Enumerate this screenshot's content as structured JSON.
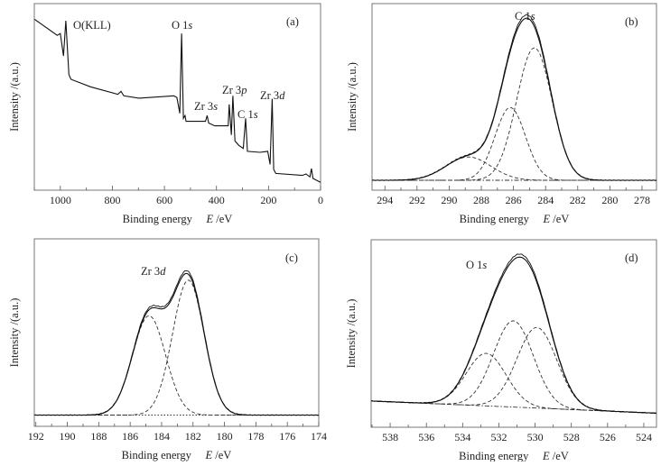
{
  "chart_data": [
    {
      "panel_label": "(a)",
      "type": "line",
      "xlabel": {
        "text": "Binding energy",
        "var": "E",
        "unit": " /eV"
      },
      "ylabel": "Intensity /(a.u.)",
      "xlim": [
        1100,
        0
      ],
      "ylim": [
        0,
        1
      ],
      "x_ticks": [
        "1000",
        "800",
        "600",
        "400",
        "200",
        "0"
      ],
      "x_tick_values": [
        1000,
        800,
        600,
        400,
        200,
        0
      ],
      "annotations": [
        {
          "main": "O(KLL)",
          "ital": ""
        },
        {
          "main": "O 1",
          "ital": "s"
        },
        {
          "main": "Zr 3",
          "ital": "s"
        },
        {
          "main": "Zr 3",
          "ital": "p"
        },
        {
          "main": "C 1",
          "ital": "s"
        },
        {
          "main": "Zr 3",
          "ital": "d"
        }
      ],
      "series": [
        {
          "style": "solid",
          "x": [
            1099,
            1012,
            1000,
            988,
            979,
            967,
            959,
            884,
            779,
            767,
            756,
            698,
            564,
            552,
            541,
            534,
            527,
            521,
            517,
            442,
            436,
            430,
            407,
            355,
            351,
            343,
            337,
            329,
            314,
            297,
            288,
            281,
            233,
            203,
            194,
            186,
            180,
            172,
            70,
            56,
            41,
            35,
            29,
            0
          ],
          "y": [
            0.916,
            0.83,
            0.84,
            0.72,
            0.908,
            0.62,
            0.594,
            0.554,
            0.514,
            0.53,
            0.506,
            0.493,
            0.506,
            0.497,
            0.412,
            0.84,
            0.385,
            0.4,
            0.369,
            0.369,
            0.4,
            0.36,
            0.345,
            0.345,
            0.46,
            0.296,
            0.506,
            0.264,
            0.24,
            0.224,
            0.385,
            0.208,
            0.203,
            0.208,
            0.138,
            0.49,
            0.111,
            0.09,
            0.079,
            0.087,
            0.071,
            0.116,
            0.063,
            0.042
          ]
        }
      ]
    },
    {
      "panel_label": "(b)",
      "type": "line",
      "xlabel": {
        "text": "Binding energy",
        "var": "E",
        "unit": " /eV"
      },
      "ylabel": "Intensity /(a.u.)",
      "xlim": [
        294.8,
        277.1
      ],
      "ylim": [
        0,
        1
      ],
      "x_ticks": [
        "294",
        "292",
        "290",
        "288",
        "286",
        "284",
        "282",
        "280",
        "278"
      ],
      "x_tick_values": [
        294,
        292,
        290,
        288,
        286,
        284,
        282,
        280,
        278
      ],
      "annotations": [
        {
          "main": "C 1",
          "ital": "s"
        }
      ],
      "baseline": {
        "x": [
          294.8,
          277.1
        ],
        "y": [
          0.053,
          0.053
        ]
      },
      "fit_components": [
        {
          "center": 284.7,
          "height": 0.71,
          "sigma": 1.1
        },
        {
          "center": 286.2,
          "height": 0.39,
          "sigma": 0.95
        },
        {
          "center": 288.8,
          "height": 0.125,
          "sigma": 1.4
        }
      ]
    },
    {
      "panel_label": "(c)",
      "type": "line",
      "xlabel": {
        "text": "Binding energy",
        "var": "E",
        "unit": " /eV"
      },
      "ylabel": "Intensity /(a.u.)",
      "xlim": [
        192.1,
        174
      ],
      "ylim": [
        0,
        1
      ],
      "x_ticks": [
        "192",
        "190",
        "188",
        "186",
        "184",
        "182",
        "180",
        "178",
        "176",
        "174"
      ],
      "x_tick_values": [
        192,
        190,
        188,
        186,
        184,
        182,
        180,
        178,
        176,
        174
      ],
      "annotations": [
        {
          "main": "Zr 3",
          "ital": "d"
        }
      ],
      "baseline": {
        "x": [
          192.1,
          174
        ],
        "y": [
          0.06,
          0.06
        ]
      },
      "fit_components": [
        {
          "center": 184.8,
          "height": 0.53,
          "sigma": 1.05
        },
        {
          "center": 182.3,
          "height": 0.72,
          "sigma": 1.0
        }
      ]
    },
    {
      "panel_label": "(d)",
      "type": "line",
      "xlabel": {
        "text": "Binding energy",
        "var": "E",
        "unit": " /eV"
      },
      "ylabel": "Intensity /(a.u.)",
      "xlim": [
        539.05,
        523.3
      ],
      "ylim": [
        0,
        1
      ],
      "x_ticks": [
        "538",
        "536",
        "534",
        "532",
        "530",
        "528",
        "526",
        "524"
      ],
      "x_tick_values": [
        538,
        536,
        534,
        532,
        530,
        528,
        526,
        524
      ],
      "annotations": [
        {
          "main": "O 1",
          "ital": "s"
        }
      ],
      "baseline": {
        "x": [
          539.05,
          523.3
        ],
        "y": [
          0.14,
          0.075
        ]
      },
      "fit_components": [
        {
          "center": 532.7,
          "height": 0.28,
          "sigma": 1.1
        },
        {
          "center": 531.2,
          "height": 0.46,
          "sigma": 1.1
        },
        {
          "center": 529.9,
          "height": 0.43,
          "sigma": 1.1
        }
      ]
    }
  ]
}
